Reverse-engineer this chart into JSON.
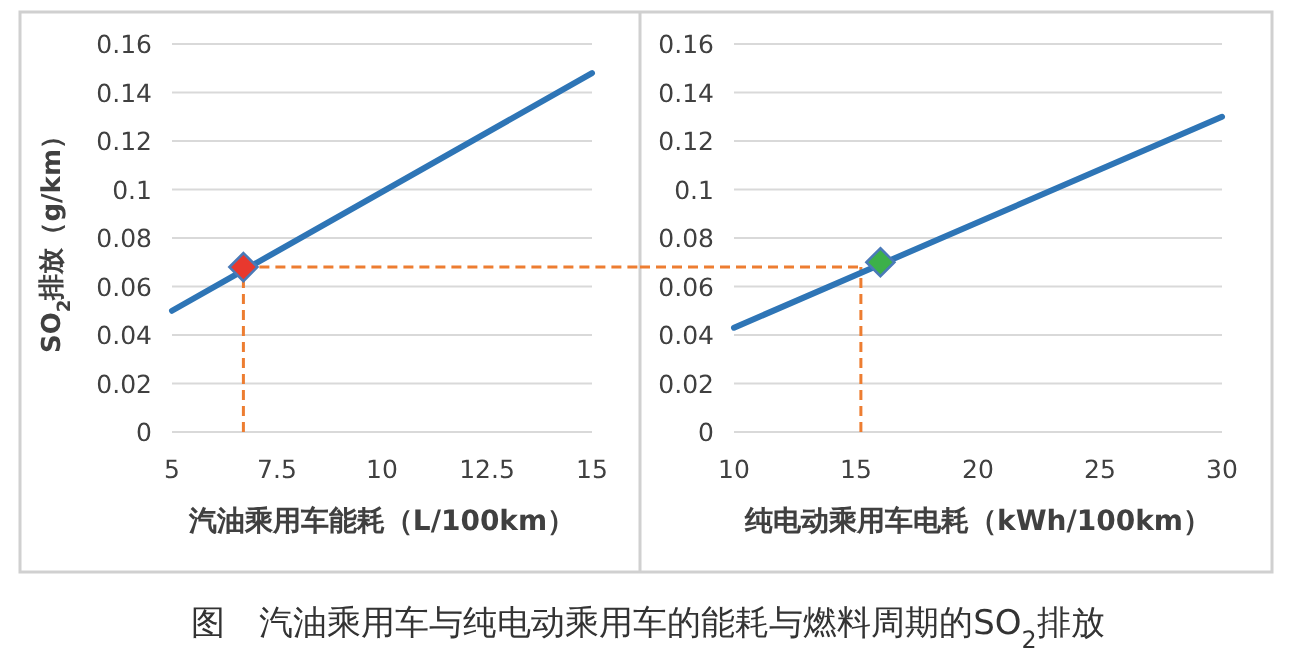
{
  "chart_data": [
    {
      "type": "line",
      "xlabel": "汽油乘用车能耗（L/100km）",
      "ylabel": "SO$_{2}$排放（g/km）",
      "xlim": [
        5,
        15
      ],
      "xticks": [
        5,
        7.5,
        10,
        12.5,
        15
      ],
      "ylim": [
        0,
        0.16
      ],
      "yticks": [
        0,
        0.02,
        0.04,
        0.06,
        0.08,
        0.1,
        0.12,
        0.14,
        0.16
      ],
      "grid": "y",
      "series": [
        {
          "color": "#2e75b6",
          "x": [
            5,
            15
          ],
          "values": [
            0.05,
            0.148
          ]
        },
        {
          "type": "scatter",
          "marker": "diamond",
          "color": "#e8382e",
          "x": [
            6.7
          ],
          "values": [
            0.068
          ]
        }
      ],
      "ref_lines": [
        {
          "axis": "x",
          "value": 6.7,
          "color": "#ed7d31",
          "line_style": "dashed"
        },
        {
          "axis": "y",
          "value": 0.068,
          "color": "#ed7d31",
          "line_style": "dashed"
        }
      ],
      "annotations": [
        "图　汽油乘用车与纯电动乘用车的能耗与燃料周期的SO$_{2}$排放"
      ]
    },
    {
      "type": "line",
      "xlabel": "纯电动乘用车电耗（kWh/100km）",
      "xlim": [
        10,
        30
      ],
      "xticks": [
        10,
        15,
        20,
        25,
        30
      ],
      "ylim": [
        0,
        0.16
      ],
      "yticks": [
        0,
        0.02,
        0.04,
        0.06,
        0.08,
        0.1,
        0.12,
        0.14,
        0.16
      ],
      "grid": "y",
      "series": [
        {
          "color": "#2e75b6",
          "x": [
            10,
            30
          ],
          "values": [
            0.043,
            0.13
          ]
        },
        {
          "type": "scatter",
          "marker": "diamond",
          "color": "#3cb04a",
          "x": [
            16
          ],
          "values": [
            0.07
          ]
        }
      ],
      "ref_lines": [
        {
          "axis": "x",
          "value": 15.2,
          "color": "#ed7d31",
          "line_style": "dashed"
        },
        {
          "axis": "y",
          "value": 0.068,
          "color": "#ed7d31",
          "line_style": "dashed"
        }
      ]
    }
  ]
}
